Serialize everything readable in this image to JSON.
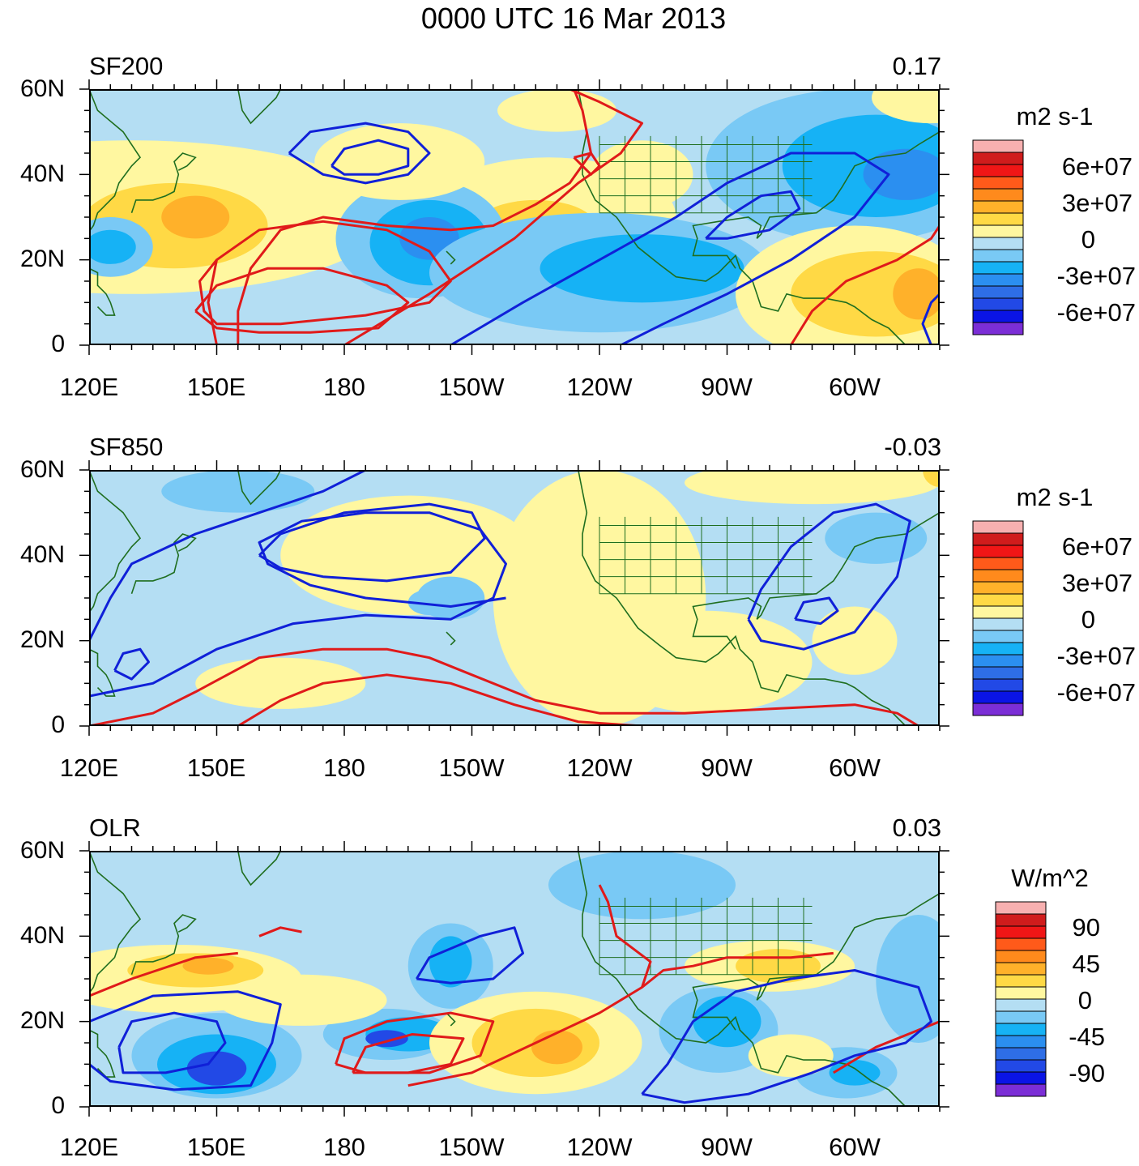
{
  "title": "0000 UTC 16 Mar 2013",
  "palette": {
    "bins": [
      "#7b2ed6",
      "#0a14e6",
      "#2249e6",
      "#2e6ee6",
      "#2b8ff0",
      "#16b2f5",
      "#79c9f5",
      "#b4def3",
      "#fff7a0",
      "#ffd945",
      "#ffb12a",
      "#ff8a1c",
      "#ff5a1a",
      "#f01616",
      "#d01c1c",
      "#f7b0b0"
    ],
    "land_line": "#1f6e1f",
    "positive_contour": "#e01a1a",
    "negative_contour": "#1020d8"
  },
  "x_ticks": [
    "120E",
    "150E",
    "180",
    "150W",
    "120W",
    "90W",
    "60W"
  ],
  "y_ticks": [
    "60N",
    "40N",
    "20N",
    "0"
  ],
  "panels": [
    {
      "name": "SF200",
      "label": "SF200",
      "corr": "0.17",
      "units": "m2 s-1",
      "cbar_labels": [
        "6e+07",
        "3e+07",
        "0",
        "-3e+07",
        "-6e+07"
      ]
    },
    {
      "name": "SF850",
      "label": "SF850",
      "corr": "-0.03",
      "units": "m2 s-1",
      "cbar_labels": [
        "6e+07",
        "3e+07",
        "0",
        "-3e+07",
        "-6e+07"
      ]
    },
    {
      "name": "OLR",
      "label": "OLR",
      "corr": "0.03",
      "units": "W/m^2",
      "cbar_labels": [
        "90",
        "45",
        "0",
        "-45",
        "-90"
      ]
    }
  ],
  "chart_data": [
    {
      "type": "heatmap",
      "title": "SF200",
      "annotation": "0.17",
      "units": "m2 s-1",
      "x_range_deg_east": [
        120,
        320
      ],
      "y_range_deg_north": [
        0,
        60
      ],
      "levels": [
        -60000000.0,
        -50000000.0,
        -40000000.0,
        -30000000.0,
        -20000000.0,
        -10000000.0,
        0,
        10000000.0,
        20000000.0,
        30000000.0,
        40000000.0,
        50000000.0,
        60000000.0
      ],
      "fill_centers": [
        {
          "lon": 140,
          "lat": 30,
          "value": 30000000.0
        },
        {
          "lon": 153,
          "lat": 18,
          "value": 25000000.0
        },
        {
          "lon": 198,
          "lat": 25,
          "value": -40000000.0
        },
        {
          "lon": 194,
          "lat": 42,
          "value": 10000000.0
        },
        {
          "lon": 300,
          "lat": 12,
          "value": 35000000.0
        },
        {
          "lon": 315,
          "lat": 40,
          "value": -40000000.0
        },
        {
          "lon": 240,
          "lat": 17,
          "value": -35000000.0
        },
        {
          "lon": 283,
          "lat": 34,
          "value": -20000000.0
        },
        {
          "lon": 122,
          "lat": 22,
          "value": -30000000.0
        },
        {
          "lon": 227,
          "lat": 28,
          "value": 20000000.0
        }
      ]
    },
    {
      "type": "heatmap",
      "title": "SF850",
      "annotation": "-0.03",
      "units": "m2 s-1",
      "x_range_deg_east": [
        120,
        320
      ],
      "y_range_deg_north": [
        0,
        60
      ],
      "levels": [
        -60000000.0,
        -50000000.0,
        -40000000.0,
        -30000000.0,
        -20000000.0,
        -10000000.0,
        0,
        10000000.0,
        20000000.0,
        30000000.0,
        40000000.0,
        50000000.0,
        60000000.0
      ],
      "fill_centers": [
        {
          "lon": 195,
          "lat": 38,
          "value": 10000000.0
        },
        {
          "lon": 203,
          "lat": 30,
          "value": -20000000.0
        },
        {
          "lon": 235,
          "lat": 35,
          "value": 10000000.0
        },
        {
          "lon": 300,
          "lat": 45,
          "value": -20000000.0
        },
        {
          "lon": 282,
          "lat": 22,
          "value": 10000000.0
        },
        {
          "lon": 160,
          "lat": 8,
          "value": 10000000.0
        },
        {
          "lon": 150,
          "lat": 25,
          "value": -10000000.0
        }
      ]
    },
    {
      "type": "heatmap",
      "title": "OLR",
      "annotation": "0.03",
      "units": "W/m^2",
      "x_range_deg_east": [
        120,
        320
      ],
      "y_range_deg_north": [
        0,
        60
      ],
      "levels": [
        -90,
        -75,
        -60,
        -45,
        -30,
        -15,
        0,
        15,
        30,
        45,
        60,
        75,
        90
      ],
      "fill_centers": [
        {
          "lon": 150,
          "lat": 10,
          "value": -80
        },
        {
          "lon": 152,
          "lat": 33,
          "value": 40
        },
        {
          "lon": 190,
          "lat": 17,
          "value": -70
        },
        {
          "lon": 205,
          "lat": 30,
          "value": -60
        },
        {
          "lon": 222,
          "lat": 17,
          "value": 40
        },
        {
          "lon": 270,
          "lat": 20,
          "value": -60
        },
        {
          "lon": 275,
          "lat": 33,
          "value": 45
        },
        {
          "lon": 300,
          "lat": 12,
          "value": -60
        },
        {
          "lon": 248,
          "lat": 50,
          "value": -30
        }
      ]
    }
  ]
}
